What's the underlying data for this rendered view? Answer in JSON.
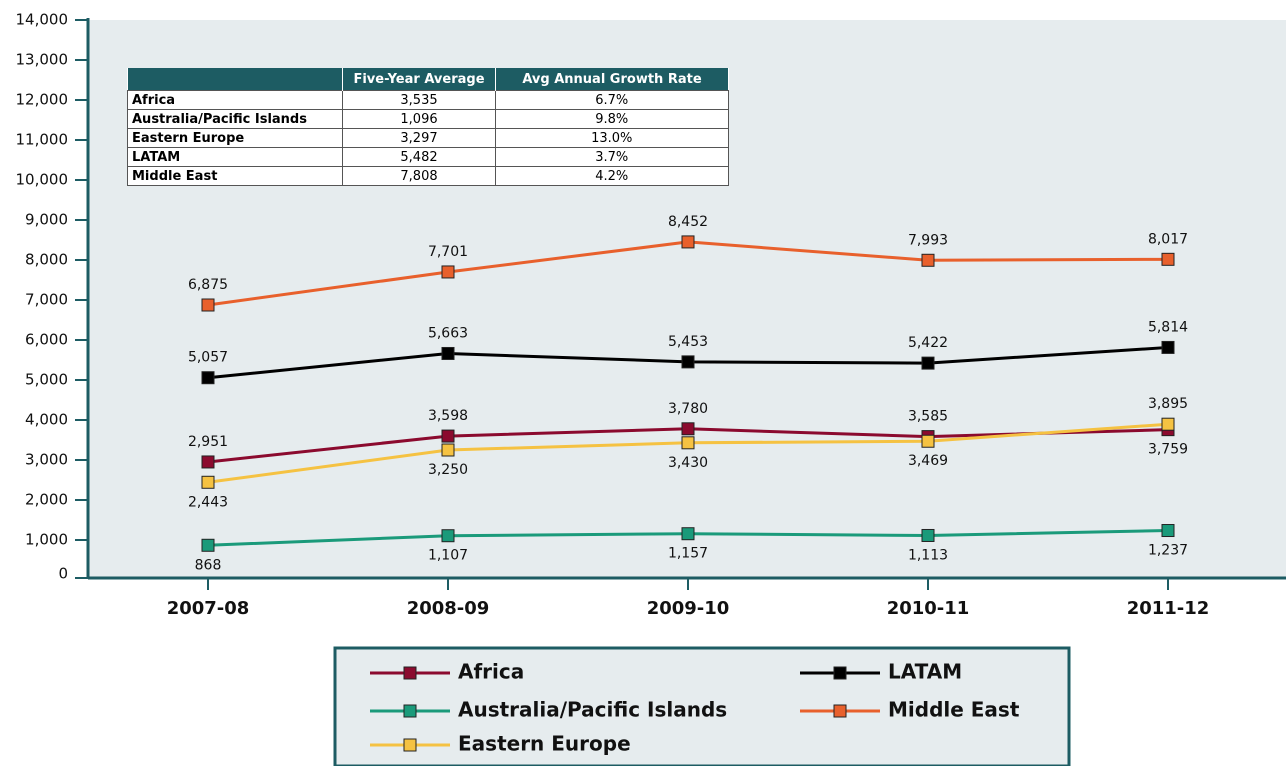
{
  "chart_data": {
    "type": "line",
    "categories": [
      "2007-08",
      "2008-09",
      "2009-10",
      "2010-11",
      "2011-12"
    ],
    "ylim": [
      0,
      14000
    ],
    "yticks": [
      0,
      {
        "value": 1000,
        "label": "1,000"
      },
      {
        "value": 2000,
        "label": "2,000"
      },
      {
        "value": 3000,
        "label": "3,000"
      },
      {
        "value": 4000,
        "label": "4,000"
      },
      {
        "value": 5000,
        "label": "5,000"
      },
      {
        "value": 6000,
        "label": "6,000"
      },
      {
        "value": 7000,
        "label": "7,000"
      },
      {
        "value": 8000,
        "label": "8,000"
      },
      {
        "value": 9000,
        "label": "9,000"
      },
      {
        "value": 10000,
        "label": "10,000"
      },
      {
        "value": 11000,
        "label": "11,000"
      },
      {
        "value": 12000,
        "label": "12,000"
      },
      {
        "value": 13000,
        "label": "13,000"
      },
      {
        "value": 14000,
        "label": "14,000"
      }
    ],
    "series": [
      {
        "name": "Africa",
        "color": "#8b0a2e",
        "values": [
          2951,
          3598,
          3780,
          3585,
          3759
        ],
        "value_labels": [
          "2,951",
          "3,598",
          "3,780",
          "3,585",
          "3,759"
        ]
      },
      {
        "name": "Australia/Pacific Islands",
        "color": "#1a9a7a",
        "values": [
          868,
          1107,
          1157,
          1113,
          1237
        ],
        "value_labels": [
          "868",
          "1,107",
          "1,157",
          "1,113",
          "1,237"
        ]
      },
      {
        "name": "Eastern Europe",
        "color": "#f5c242",
        "values": [
          2443,
          3250,
          3430,
          3469,
          3895
        ],
        "value_labels": [
          "2,443",
          "3,250",
          "3,430",
          "3,469",
          "3,895"
        ]
      },
      {
        "name": "LATAM",
        "color": "#000000",
        "values": [
          5057,
          5663,
          5453,
          5422,
          5814
        ],
        "value_labels": [
          "5,057",
          "5,663",
          "5,453",
          "5,422",
          "5,814"
        ]
      },
      {
        "name": "Middle East",
        "color": "#e8602c",
        "values": [
          6875,
          7701,
          8452,
          7993,
          8017
        ],
        "value_labels": [
          "6,875",
          "7,701",
          "8,452",
          "7,993",
          "8,017"
        ]
      }
    ],
    "table": {
      "header": [
        "Five-Year Average",
        "Avg Annual Growth Rate"
      ],
      "rows": [
        [
          "Africa",
          "3,535",
          "6.7%"
        ],
        [
          "Australia/Pacific Islands",
          "1,096",
          "9.8%"
        ],
        [
          "Eastern Europe",
          "3,297",
          "13.0%"
        ],
        [
          "LATAM",
          "5,482",
          "3.7%"
        ],
        [
          "Middle East",
          "7,808",
          "4.2%"
        ]
      ]
    }
  }
}
